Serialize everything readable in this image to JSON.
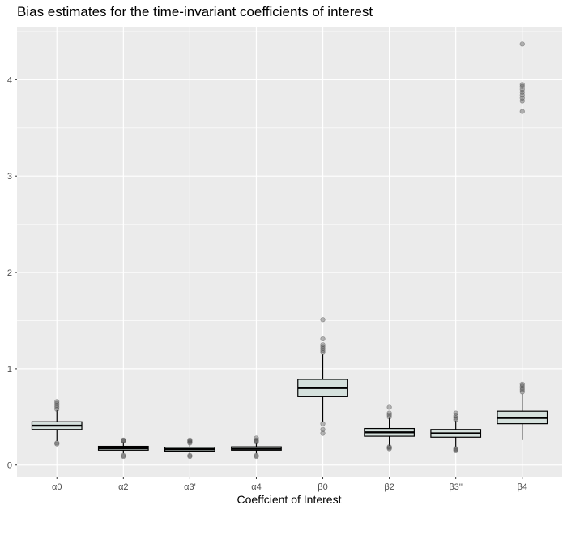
{
  "chart_data": {
    "type": "boxplot",
    "title": "Bias estimates for the time-invariant coefficients of interest",
    "xlabel": "Coeffcient of Interest",
    "ylabel": "",
    "ylim": [
      -0.12,
      4.55
    ],
    "yticks": [
      "0",
      "1",
      "2",
      "3",
      "4"
    ],
    "grid": true,
    "legend": "none",
    "colors": {
      "panel": "#ebebeb",
      "grid_major": "#ffffff",
      "box_fill": "#d5e1dd",
      "box_line": "#000000",
      "outlier": "#4d4d4d",
      "tick_text": "#4d4d4d"
    },
    "categories": [
      "α0",
      "α2",
      "α3'",
      "α4",
      "β0",
      "β2",
      "β3''",
      "β4"
    ],
    "boxes": [
      {
        "category": "α0",
        "whisker_low": 0.25,
        "q1": 0.37,
        "median": 0.41,
        "q3": 0.45,
        "whisker_high": 0.57,
        "outliers": [
          0.58,
          0.6,
          0.62,
          0.64,
          0.66,
          0.22,
          0.23
        ]
      },
      {
        "category": "α2",
        "whisker_low": 0.12,
        "q1": 0.155,
        "median": 0.175,
        "q3": 0.195,
        "whisker_high": 0.24,
        "outliers": [
          0.25,
          0.255,
          0.26,
          0.1,
          0.09
        ]
      },
      {
        "category": "α3'",
        "whisker_low": 0.11,
        "q1": 0.145,
        "median": 0.165,
        "q3": 0.185,
        "whisker_high": 0.22,
        "outliers": [
          0.23,
          0.24,
          0.25,
          0.26,
          0.1,
          0.09
        ]
      },
      {
        "category": "α4",
        "whisker_low": 0.12,
        "q1": 0.155,
        "median": 0.17,
        "q3": 0.19,
        "whisker_high": 0.23,
        "outliers": [
          0.24,
          0.25,
          0.26,
          0.28,
          0.1,
          0.09
        ]
      },
      {
        "category": "β0",
        "whisker_low": 0.45,
        "q1": 0.71,
        "median": 0.8,
        "q3": 0.89,
        "whisker_high": 1.15,
        "outliers": [
          1.17,
          1.19,
          1.21,
          1.23,
          1.25,
          1.31,
          1.51,
          0.43,
          0.37,
          0.33
        ]
      },
      {
        "category": "β2",
        "whisker_low": 0.2,
        "q1": 0.3,
        "median": 0.34,
        "q3": 0.38,
        "whisker_high": 0.49,
        "outliers": [
          0.5,
          0.52,
          0.54,
          0.6,
          0.19,
          0.18,
          0.17
        ]
      },
      {
        "category": "β3''",
        "whisker_low": 0.19,
        "q1": 0.29,
        "median": 0.33,
        "q3": 0.37,
        "whisker_high": 0.46,
        "outliers": [
          0.47,
          0.49,
          0.51,
          0.54,
          0.17,
          0.16,
          0.15
        ]
      },
      {
        "category": "β4",
        "whisker_low": 0.26,
        "q1": 0.43,
        "median": 0.49,
        "q3": 0.56,
        "whisker_high": 0.74,
        "outliers": [
          0.76,
          0.78,
          0.8,
          0.82,
          0.84,
          3.67,
          3.78,
          3.81,
          3.84,
          3.87,
          3.9,
          3.93,
          3.95,
          4.37
        ]
      }
    ]
  }
}
